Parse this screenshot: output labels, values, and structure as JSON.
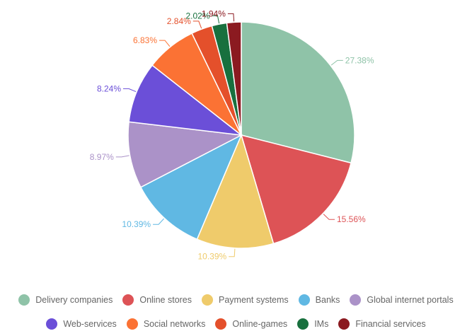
{
  "chart_data": {
    "type": "pie",
    "title": "",
    "categories": [
      "Delivery companies",
      "Online stores",
      "Payment systems",
      "Banks",
      "Global internet portals",
      "Web-services",
      "Social networks",
      "Online-games",
      "IMs",
      "Financial services"
    ],
    "values": [
      27.38,
      15.56,
      10.39,
      10.39,
      8.97,
      8.24,
      6.83,
      2.84,
      2.02,
      1.94
    ],
    "value_labels": [
      "27.38%",
      "15.56%",
      "10.39%",
      "10.39%",
      "8.97%",
      "8.24%",
      "6.83%",
      "2.84%",
      "2.02%",
      "1.94%"
    ],
    "colors": [
      "#8fc3a8",
      "#dd5356",
      "#efcb6b",
      "#60b8e3",
      "#ab92c8",
      "#6b4fd8",
      "#fb7234",
      "#e4502b",
      "#18703e",
      "#8b1a20"
    ],
    "legend_position": "bottom"
  }
}
